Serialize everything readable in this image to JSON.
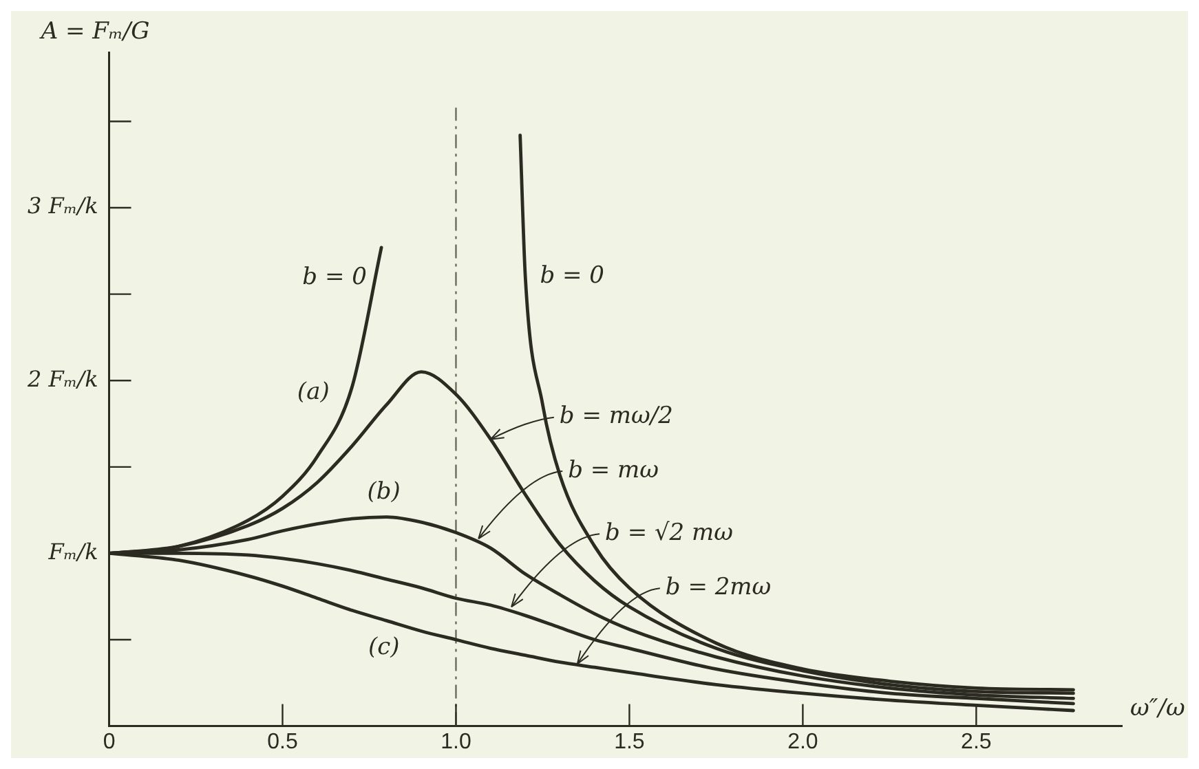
{
  "chart_data": {
    "type": "line",
    "xlabel": "ω″/ω",
    "ylabel": "A = Fₘ/G",
    "xlim": [
      0,
      2.92
    ],
    "ylim": [
      0,
      3.9
    ],
    "xticks": [
      0,
      0.5,
      {
        "value": 1,
        "label": "1.0"
      },
      1.5,
      {
        "value": 2,
        "label": "2.0"
      },
      2.5
    ],
    "yticks": [
      {
        "value": 0.5,
        "label": null
      },
      {
        "value": 1,
        "label": "Fₘ/k"
      },
      {
        "value": 1.5,
        "label": null
      },
      {
        "value": 2,
        "label": "2 Fₘ/k"
      },
      {
        "value": 2.5,
        "label": null
      },
      {
        "value": 3,
        "label": "3 Fₘ/k"
      },
      {
        "value": 3.5,
        "label": null
      }
    ],
    "marker": "none",
    "line_style": "solid",
    "series": [
      {
        "color": "#2b2b22",
        "x": [
          0,
          0.2,
          0.4,
          0.5,
          0.6,
          0.7,
          0.785,
          1.0,
          1.185,
          1.2,
          1.25,
          1.3,
          1.4,
          1.5,
          1.75,
          2.0,
          2.25,
          2.5,
          2.78
        ],
        "values": [
          1,
          1.04,
          1.19,
          1.33,
          1.56,
          1.96,
          2.77,
          null,
          3.42,
          2.6,
          1.86,
          1.45,
          1.04,
          0.8,
          0.48,
          0.33,
          0.26,
          0.22,
          0.21
        ]
      },
      {
        "color": "#2b2b22",
        "x": [
          0,
          0.2,
          0.4,
          0.5,
          0.6,
          0.7,
          0.8,
          0.9,
          1.0,
          1.1,
          1.2,
          1.3,
          1.4,
          1.5,
          1.75,
          2.0,
          2.25,
          2.5,
          2.78
        ],
        "values": [
          1,
          1.04,
          1.16,
          1.26,
          1.41,
          1.62,
          1.86,
          2.05,
          1.92,
          1.66,
          1.34,
          1.05,
          0.84,
          0.69,
          0.45,
          0.32,
          0.24,
          0.2,
          0.19
        ]
      },
      {
        "color": "#2b2b22",
        "x": [
          0,
          0.2,
          0.4,
          0.5,
          0.6,
          0.7,
          0.8,
          0.9,
          1.0,
          1.1,
          1.2,
          1.3,
          1.4,
          1.5,
          1.75,
          2.0,
          2.25,
          2.5,
          2.78
        ],
        "values": [
          1,
          1.02,
          1.08,
          1.13,
          1.17,
          1.2,
          1.21,
          1.18,
          1.12,
          1.03,
          0.88,
          0.76,
          0.65,
          0.56,
          0.4,
          0.29,
          0.22,
          0.18,
          0.16
        ]
      },
      {
        "color": "#2b2b22",
        "x": [
          0,
          0.2,
          0.4,
          0.5,
          0.6,
          0.7,
          0.8,
          0.9,
          1.0,
          1.1,
          1.2,
          1.3,
          1.4,
          1.5,
          1.75,
          2.0,
          2.25,
          2.5,
          2.78
        ],
        "values": [
          1,
          1,
          0.99,
          0.97,
          0.94,
          0.9,
          0.85,
          0.8,
          0.74,
          0.7,
          0.64,
          0.57,
          0.5,
          0.45,
          0.33,
          0.25,
          0.19,
          0.16,
          0.13
        ]
      },
      {
        "color": "#2b2b22",
        "x": [
          0,
          0.2,
          0.4,
          0.5,
          0.6,
          0.7,
          0.8,
          0.9,
          1.0,
          1.1,
          1.2,
          1.3,
          1.4,
          1.5,
          1.75,
          2.0,
          2.25,
          2.5,
          2.78
        ],
        "values": [
          1,
          0.96,
          0.87,
          0.81,
          0.74,
          0.67,
          0.61,
          0.55,
          0.5,
          0.45,
          0.41,
          0.37,
          0.34,
          0.31,
          0.24,
          0.19,
          0.15,
          0.12,
          0.09
        ]
      }
    ],
    "ref_lines": [
      {
        "axis": "x",
        "value": 1,
        "line_style": "dashed",
        "color": "#6b6b60"
      }
    ],
    "annotations": [
      {
        "text": "b = 0",
        "x": 0.785,
        "y": 2.77
      },
      {
        "text": "b = 0",
        "x": 1.2,
        "y": 2.6
      },
      {
        "text": "(a)",
        "x": 0.7,
        "y": 1.96
      },
      {
        "text": "(b)",
        "x": 0.8,
        "y": 1.21
      },
      {
        "text": "(c)",
        "x": 0.8,
        "y": 0.61
      },
      {
        "text": "b = mω/2",
        "x": 1.1,
        "y": 1.66
      },
      {
        "text": "b = mω",
        "x": 1.065,
        "y": 1.085
      },
      {
        "text": "b = √2 mω",
        "x": 1.16,
        "y": 0.69
      },
      {
        "text": "b = 2mω",
        "x": 1.35,
        "y": 0.36
      }
    ]
  }
}
